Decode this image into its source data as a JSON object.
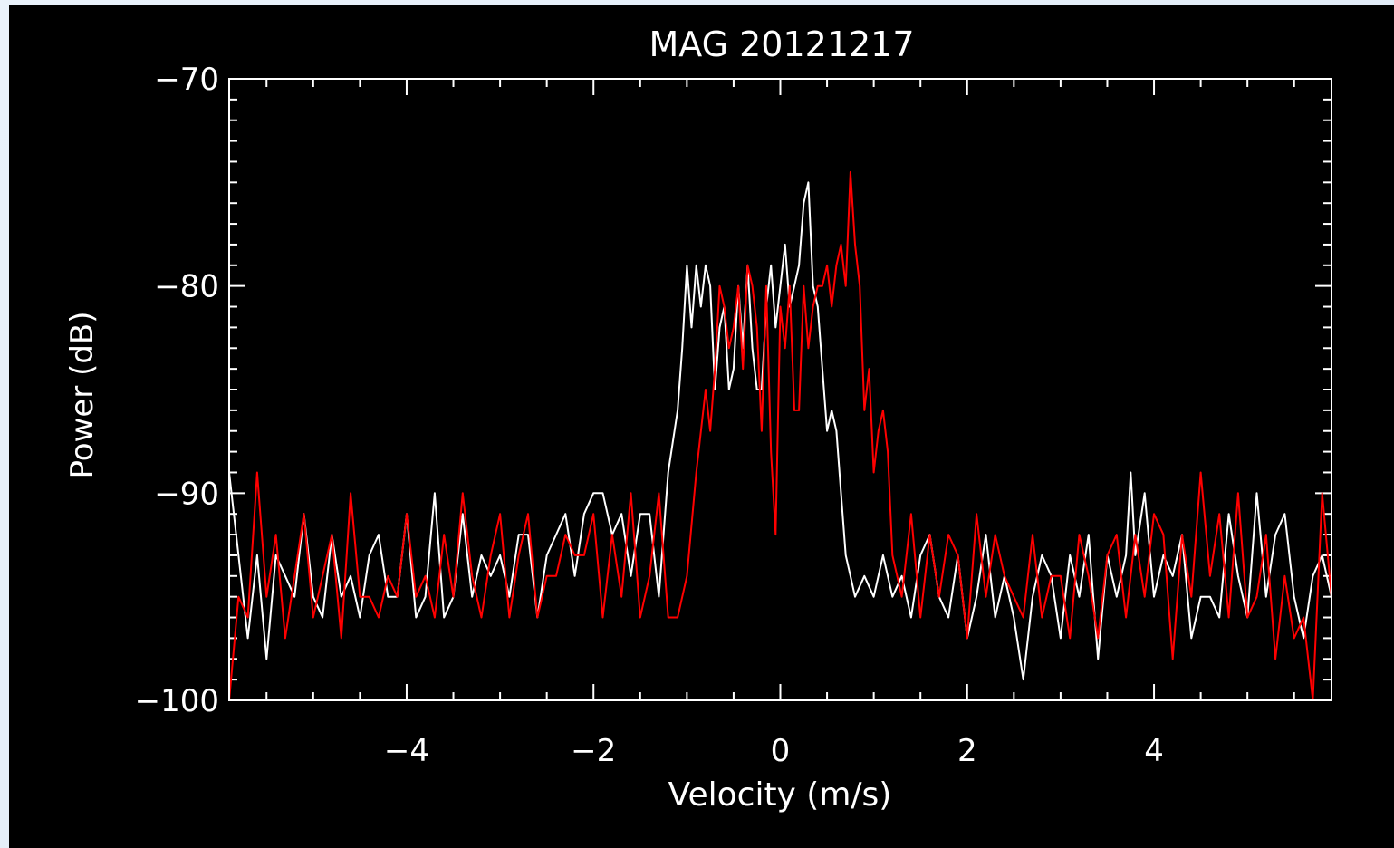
{
  "chart_data": {
    "type": "line",
    "title": "MAG 20121217",
    "xlabel": "Velocity (m/s)",
    "ylabel": "Power (dB)",
    "xlim": [
      -5.9,
      5.9
    ],
    "ylim": [
      -100,
      -70
    ],
    "x_ticks": [
      -4,
      -2,
      0,
      2,
      4
    ],
    "x_tick_labels": [
      "−4",
      "−2",
      "0",
      "2",
      "4"
    ],
    "y_ticks": [
      -100,
      -90,
      -80,
      -70
    ],
    "y_tick_labels": [
      "−100",
      "−90",
      "−80",
      "−70"
    ],
    "grid": false,
    "legend": "none",
    "background_color": "#000000",
    "axis_color": "#ffffff",
    "series": [
      {
        "color": "#ffffff",
        "x": [
          -5.9,
          -5.8,
          -5.7,
          -5.6,
          -5.5,
          -5.4,
          -5.3,
          -5.2,
          -5.1,
          -5.0,
          -4.9,
          -4.8,
          -4.7,
          -4.6,
          -4.5,
          -4.4,
          -4.3,
          -4.2,
          -4.1,
          -4.0,
          -3.9,
          -3.8,
          -3.7,
          -3.6,
          -3.5,
          -3.4,
          -3.3,
          -3.2,
          -3.1,
          -3.0,
          -2.9,
          -2.8,
          -2.7,
          -2.6,
          -2.5,
          -2.4,
          -2.3,
          -2.2,
          -2.1,
          -2.0,
          -1.9,
          -1.8,
          -1.7,
          -1.6,
          -1.5,
          -1.4,
          -1.3,
          -1.2,
          -1.1,
          -1.05,
          -1.0,
          -0.95,
          -0.9,
          -0.85,
          -0.8,
          -0.75,
          -0.7,
          -0.65,
          -0.6,
          -0.55,
          -0.5,
          -0.45,
          -0.4,
          -0.35,
          -0.3,
          -0.25,
          -0.2,
          -0.15,
          -0.1,
          -0.05,
          0.0,
          0.05,
          0.1,
          0.15,
          0.2,
          0.25,
          0.3,
          0.35,
          0.4,
          0.45,
          0.5,
          0.55,
          0.6,
          0.65,
          0.7,
          0.75,
          0.8,
          0.9,
          1.0,
          1.1,
          1.2,
          1.3,
          1.4,
          1.5,
          1.6,
          1.7,
          1.8,
          1.9,
          2.0,
          2.1,
          2.2,
          2.3,
          2.4,
          2.5,
          2.6,
          2.7,
          2.8,
          2.9,
          3.0,
          3.1,
          3.2,
          3.3,
          3.4,
          3.5,
          3.6,
          3.7,
          3.75,
          3.8,
          3.9,
          4.0,
          4.1,
          4.2,
          4.3,
          4.4,
          4.5,
          4.6,
          4.7,
          4.8,
          4.9,
          5.0,
          5.1,
          5.2,
          5.3,
          5.4,
          5.5,
          5.6,
          5.7,
          5.8,
          5.9
        ],
        "y": [
          -89,
          -93,
          -97,
          -93,
          -98,
          -93,
          -94,
          -95,
          -91,
          -95,
          -96,
          -92,
          -95,
          -94,
          -96,
          -93,
          -92,
          -95,
          -95,
          -91,
          -96,
          -95,
          -90,
          -96,
          -95,
          -91,
          -95,
          -93,
          -94,
          -93,
          -95,
          -92,
          -92,
          -96,
          -93,
          -92,
          -91,
          -94,
          -91,
          -90,
          -90,
          -92,
          -91,
          -94,
          -91,
          -91,
          -95,
          -89,
          -86,
          -83,
          -79,
          -82,
          -79,
          -81,
          -79,
          -80,
          -85,
          -82,
          -81,
          -85,
          -84,
          -80,
          -83,
          -79,
          -83,
          -85,
          -85,
          -81,
          -79,
          -82,
          -80,
          -78,
          -81,
          -80,
          -79,
          -76,
          -75,
          -80,
          -81,
          -84,
          -87,
          -86,
          -87,
          -90,
          -93,
          -94,
          -95,
          -94,
          -95,
          -93,
          -95,
          -94,
          -96,
          -93,
          -92,
          -95,
          -96,
          -93,
          -97,
          -95,
          -92,
          -96,
          -94,
          -96,
          -99,
          -95,
          -93,
          -94,
          -97,
          -93,
          -95,
          -92,
          -98,
          -93,
          -95,
          -93,
          -89,
          -93,
          -90,
          -95,
          -93,
          -94,
          -92,
          -97,
          -95,
          -95,
          -96,
          -91,
          -94,
          -96,
          -90,
          -95,
          -92,
          -91,
          -95,
          -97,
          -94,
          -93,
          -95
        ]
      },
      {
        "color": "#ff0000",
        "x": [
          -5.9,
          -5.8,
          -5.7,
          -5.6,
          -5.5,
          -5.4,
          -5.3,
          -5.2,
          -5.1,
          -5.0,
          -4.9,
          -4.8,
          -4.7,
          -4.6,
          -4.5,
          -4.4,
          -4.3,
          -4.2,
          -4.1,
          -4.0,
          -3.9,
          -3.8,
          -3.7,
          -3.6,
          -3.5,
          -3.4,
          -3.3,
          -3.2,
          -3.1,
          -3.0,
          -2.9,
          -2.8,
          -2.7,
          -2.6,
          -2.5,
          -2.4,
          -2.3,
          -2.2,
          -2.1,
          -2.0,
          -1.9,
          -1.8,
          -1.7,
          -1.6,
          -1.5,
          -1.4,
          -1.3,
          -1.2,
          -1.1,
          -1.0,
          -0.9,
          -0.8,
          -0.75,
          -0.7,
          -0.65,
          -0.6,
          -0.55,
          -0.5,
          -0.45,
          -0.4,
          -0.35,
          -0.3,
          -0.25,
          -0.2,
          -0.15,
          -0.1,
          -0.05,
          0.0,
          0.05,
          0.1,
          0.15,
          0.2,
          0.25,
          0.3,
          0.35,
          0.4,
          0.45,
          0.5,
          0.55,
          0.6,
          0.65,
          0.7,
          0.75,
          0.8,
          0.85,
          0.9,
          0.95,
          1.0,
          1.05,
          1.1,
          1.15,
          1.2,
          1.3,
          1.4,
          1.5,
          1.6,
          1.7,
          1.8,
          1.9,
          2.0,
          2.1,
          2.2,
          2.3,
          2.4,
          2.5,
          2.6,
          2.7,
          2.8,
          2.9,
          3.0,
          3.1,
          3.2,
          3.3,
          3.4,
          3.5,
          3.6,
          3.7,
          3.8,
          3.9,
          4.0,
          4.1,
          4.2,
          4.3,
          4.4,
          4.5,
          4.6,
          4.7,
          4.8,
          4.9,
          5.0,
          5.1,
          5.2,
          5.3,
          5.4,
          5.5,
          5.6,
          5.7,
          5.8,
          5.9
        ],
        "y": [
          -100,
          -95,
          -96,
          -89,
          -95,
          -92,
          -97,
          -94,
          -91,
          -96,
          -94,
          -92,
          -97,
          -90,
          -95,
          -95,
          -96,
          -94,
          -95,
          -91,
          -95,
          -94,
          -96,
          -92,
          -95,
          -90,
          -94,
          -96,
          -93,
          -91,
          -96,
          -93,
          -91,
          -96,
          -94,
          -94,
          -92,
          -93,
          -93,
          -91,
          -96,
          -92,
          -95,
          -90,
          -96,
          -94,
          -90,
          -96,
          -96,
          -94,
          -89,
          -85,
          -87,
          -84,
          -80,
          -81,
          -83,
          -82,
          -80,
          -84,
          -79,
          -80,
          -82,
          -87,
          -80,
          -88,
          -92,
          -81,
          -83,
          -80,
          -86,
          -86,
          -80,
          -83,
          -81,
          -80,
          -80,
          -79,
          -81,
          -79,
          -78,
          -80,
          -74.5,
          -78,
          -80,
          -86,
          -84,
          -89,
          -87,
          -86,
          -88,
          -93,
          -95,
          -91,
          -96,
          -92,
          -95,
          -92,
          -93,
          -97,
          -91,
          -95,
          -92,
          -94,
          -95,
          -96,
          -92,
          -96,
          -94,
          -94,
          -97,
          -92,
          -94,
          -97,
          -93,
          -92,
          -96,
          -92,
          -95,
          -91,
          -92,
          -98,
          -92,
          -95,
          -89,
          -94,
          -91,
          -96,
          -90,
          -96,
          -95,
          -92,
          -98,
          -94,
          -97,
          -96,
          -100,
          -90,
          -95
        ]
      }
    ]
  }
}
